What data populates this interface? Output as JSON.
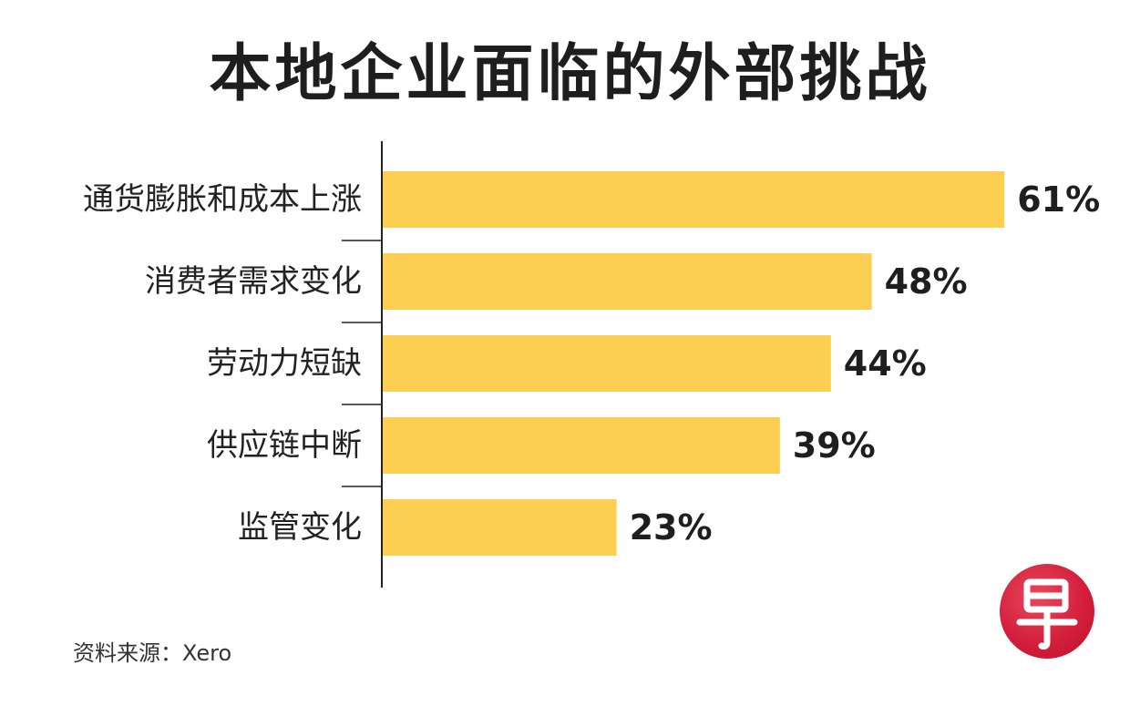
{
  "chart_data": {
    "type": "bar",
    "orientation": "horizontal",
    "title": "本地企业面临的外部挑战",
    "categories": [
      "通货膨胀和成本上涨",
      "消费者需求变化",
      "劳动力短缺",
      "供应链中断",
      "监管变化"
    ],
    "values": [
      61,
      48,
      44,
      39,
      23
    ],
    "value_labels": [
      "61%",
      "48%",
      "44%",
      "39%",
      "23%"
    ],
    "unit": "%",
    "xlim": [
      0,
      100
    ],
    "grid": false,
    "legend": "none",
    "bar_color": "#FCCF52",
    "axis_color": "#222222"
  },
  "source": "资料来源：Xero",
  "logo": {
    "icon": "zaobao-logo-icon",
    "color": "#D41F3C"
  }
}
